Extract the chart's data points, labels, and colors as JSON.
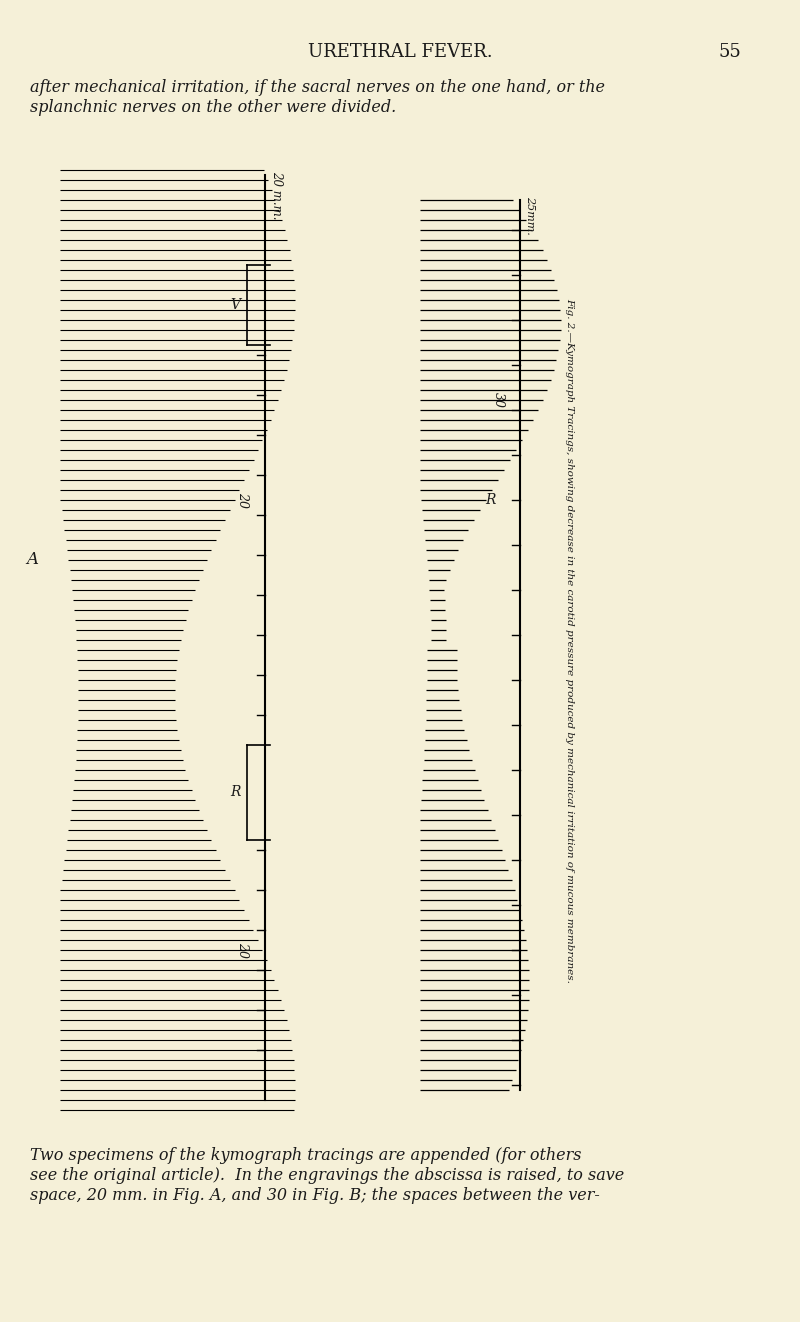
{
  "bg_color": "#f5f0d8",
  "text_color": "#1a1a1a",
  "title": "URETHRAL FEVER.",
  "page_num": "55",
  "top_text_line1": "after mechanical irritation, if the sacral nerves on the one hand, or the",
  "top_text_line2": "splanchnic nerves on the other were divided.",
  "bottom_text": "Two specimens of the kymograph tracings are appended (for others\nsee the original article).  In the engravings the abscissa is raised, to save\nspace, 20 mm. in Fig. A, and 30 in Fig. B; the spaces between the ver-",
  "fig_a_label": "A",
  "fig_b_label_R": "R",
  "fig_b_label_30": "30",
  "scale_label_20mm": "20 m.m.",
  "scale_label_V": "V",
  "scale_label_R_a": "R",
  "scale_label_20_a": "20",
  "scale_label_25mm": "25mm.",
  "scale_label_30_b": "30",
  "scale_label_R_b": "R",
  "rotated_label": "Fig. 2.—Kymograph Tracings, showing decrease in the carotid pressure produced by mechanical irritation of mucous membranes."
}
